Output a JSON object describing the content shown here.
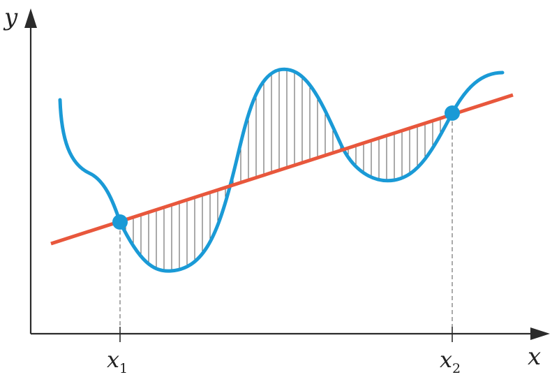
{
  "labels": {
    "y_axis": "y",
    "x_axis": "x",
    "x1_base": "x",
    "x1_sub": "1",
    "x2_base": "x",
    "x2_sub": "2"
  },
  "colors": {
    "curve": "#1a9ad6",
    "line": "#e8573c",
    "intersection_point": "#1a9ad6",
    "axes": "#2b2b2b",
    "hatch": "#555555"
  }
}
